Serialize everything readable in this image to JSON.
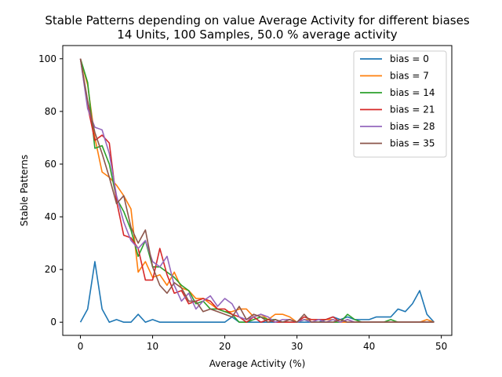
{
  "chart_data": {
    "type": "line",
    "title": "Stable Patterns depending on value Average Activity for different biases",
    "subtitle": "14 Units, 100 Samples, 50.0 % average activity",
    "xlabel": "Average Activity (%)",
    "ylabel": "Stable Patterns",
    "xlim": [
      -2.45,
      51.45
    ],
    "ylim": [
      -5,
      105
    ],
    "xticks": [
      0,
      10,
      20,
      30,
      40,
      50
    ],
    "yticks": [
      0,
      20,
      40,
      60,
      80,
      100
    ],
    "legend_position": "top-right",
    "grid": false,
    "x": [
      0,
      1,
      2,
      3,
      4,
      5,
      6,
      7,
      8,
      9,
      10,
      11,
      12,
      13,
      14,
      15,
      16,
      17,
      18,
      19,
      20,
      21,
      22,
      23,
      24,
      25,
      26,
      27,
      28,
      29,
      30,
      31,
      32,
      33,
      34,
      35,
      36,
      37,
      38,
      39,
      40,
      41,
      42,
      43,
      44,
      45,
      46,
      47,
      48,
      49
    ],
    "series": [
      {
        "name": "bias = 0",
        "color": "#1f77b4",
        "values": [
          0,
          5,
          23,
          5,
          0,
          1,
          0,
          0,
          3,
          0,
          1,
          0,
          0,
          0,
          0,
          0,
          0,
          0,
          0,
          0,
          0,
          2,
          0,
          0,
          0,
          0,
          0,
          0,
          0,
          0,
          0,
          0,
          0,
          0,
          1,
          2,
          1,
          2,
          1,
          1,
          1,
          2,
          2,
          2,
          5,
          4,
          7,
          12,
          3,
          0
        ]
      },
      {
        "name": "bias = 7",
        "color": "#ff7f0e",
        "values": [
          100,
          90,
          70,
          57,
          55,
          52,
          48,
          43,
          19,
          23,
          17,
          18,
          14,
          19,
          13,
          12,
          9,
          9,
          7,
          5,
          4,
          4,
          5,
          5,
          2,
          3,
          1,
          3,
          3,
          2,
          0,
          1,
          1,
          1,
          1,
          1,
          0,
          0,
          0,
          0,
          0,
          0,
          0,
          0,
          0,
          0,
          0,
          0,
          1,
          0
        ]
      },
      {
        "name": "bias = 14",
        "color": "#2ca02c",
        "values": [
          100,
          91,
          66,
          67,
          60,
          47,
          42,
          35,
          25,
          31,
          21,
          21,
          19,
          17,
          14,
          12,
          7,
          8,
          5,
          5,
          4,
          3,
          0,
          0,
          1,
          2,
          1,
          1,
          0,
          0,
          0,
          1,
          0,
          0,
          0,
          0,
          0,
          3,
          1,
          0,
          0,
          0,
          0,
          1,
          0,
          0,
          0,
          0,
          0,
          0
        ]
      },
      {
        "name": "bias = 21",
        "color": "#d62728",
        "values": [
          100,
          82,
          69,
          71,
          68,
          46,
          33,
          32,
          28,
          16,
          16,
          28,
          18,
          11,
          12,
          7,
          8,
          9,
          8,
          5,
          5,
          3,
          2,
          0,
          2,
          0,
          1,
          0,
          0,
          0,
          0,
          2,
          1,
          1,
          1,
          2,
          0,
          1,
          0,
          0,
          0,
          0,
          0,
          0,
          0,
          0,
          0,
          0,
          0,
          0
        ]
      },
      {
        "name": "bias = 28",
        "color": "#9467bd",
        "values": [
          100,
          81,
          74,
          73,
          64,
          48,
          38,
          31,
          28,
          31,
          23,
          21,
          25,
          14,
          8,
          11,
          5,
          8,
          10,
          6,
          9,
          7,
          2,
          1,
          2,
          3,
          2,
          0,
          1,
          1,
          0,
          1,
          0,
          1,
          0,
          1,
          0,
          1,
          0,
          0,
          0,
          0,
          0,
          0,
          0,
          0,
          0,
          0,
          0,
          0
        ]
      },
      {
        "name": "bias = 35",
        "color": "#8c564b",
        "values": [
          100,
          84,
          72,
          64,
          55,
          45,
          48,
          36,
          30,
          35,
          21,
          14,
          11,
          15,
          13,
          8,
          8,
          4,
          5,
          4,
          3,
          2,
          6,
          1,
          3,
          2,
          0,
          1,
          0,
          1,
          0,
          3,
          0,
          0,
          0,
          0,
          1,
          0,
          0,
          0,
          0,
          0,
          0,
          0,
          0,
          0,
          0,
          0,
          0,
          0
        ]
      }
    ]
  }
}
